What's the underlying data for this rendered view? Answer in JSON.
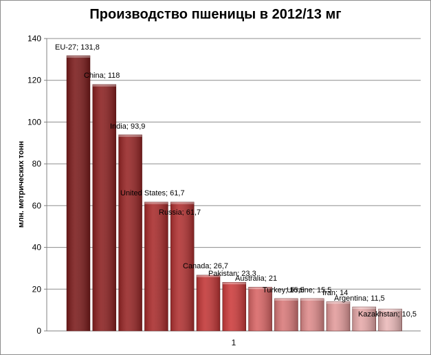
{
  "chart_data": {
    "type": "bar",
    "title": "Производство пшеницы в 2012/13 мг",
    "ylabel": "млн. метрических тонн",
    "xlabel": "",
    "x_tick_labels": [
      "1"
    ],
    "ylim": [
      0,
      140
    ],
    "y_ticks": [
      0,
      20,
      40,
      60,
      80,
      100,
      120,
      140
    ],
    "grid": true,
    "bars": [
      {
        "label": "EU-27; 131,8",
        "value": 131.8,
        "color": "#7a1a1a"
      },
      {
        "label": "China; 118",
        "value": 118,
        "color": "#8a1f1f"
      },
      {
        "label": "India; 93,9",
        "value": 93.9,
        "color": "#962424"
      },
      {
        "label": "United States; 61,7",
        "value": 61.7,
        "color": "#a82a2a"
      },
      {
        "label": "Russia; 61,7",
        "value": 61.7,
        "color": "#b03030"
      },
      {
        "label": "Canada; 26,7",
        "value": 26.7,
        "color": "#c23535"
      },
      {
        "label": "Pakistan; 23,3",
        "value": 23.3,
        "color": "#cc3a3a"
      },
      {
        "label": "Australia; 21",
        "value": 21,
        "color": "#d86464"
      },
      {
        "label": "Turkey; 15,5",
        "value": 15.5,
        "color": "#d87878"
      },
      {
        "label": "Ukraine; 15,5",
        "value": 15.5,
        "color": "#de8a8a"
      },
      {
        "label": "Iran; 14",
        "value": 14,
        "color": "#e29a9a"
      },
      {
        "label": "Argentina; 11,5",
        "value": 11.5,
        "color": "#e6a8a8"
      },
      {
        "label": "Kazakhstan; 10,5",
        "value": 10.5,
        "color": "#eab8b8"
      }
    ]
  }
}
